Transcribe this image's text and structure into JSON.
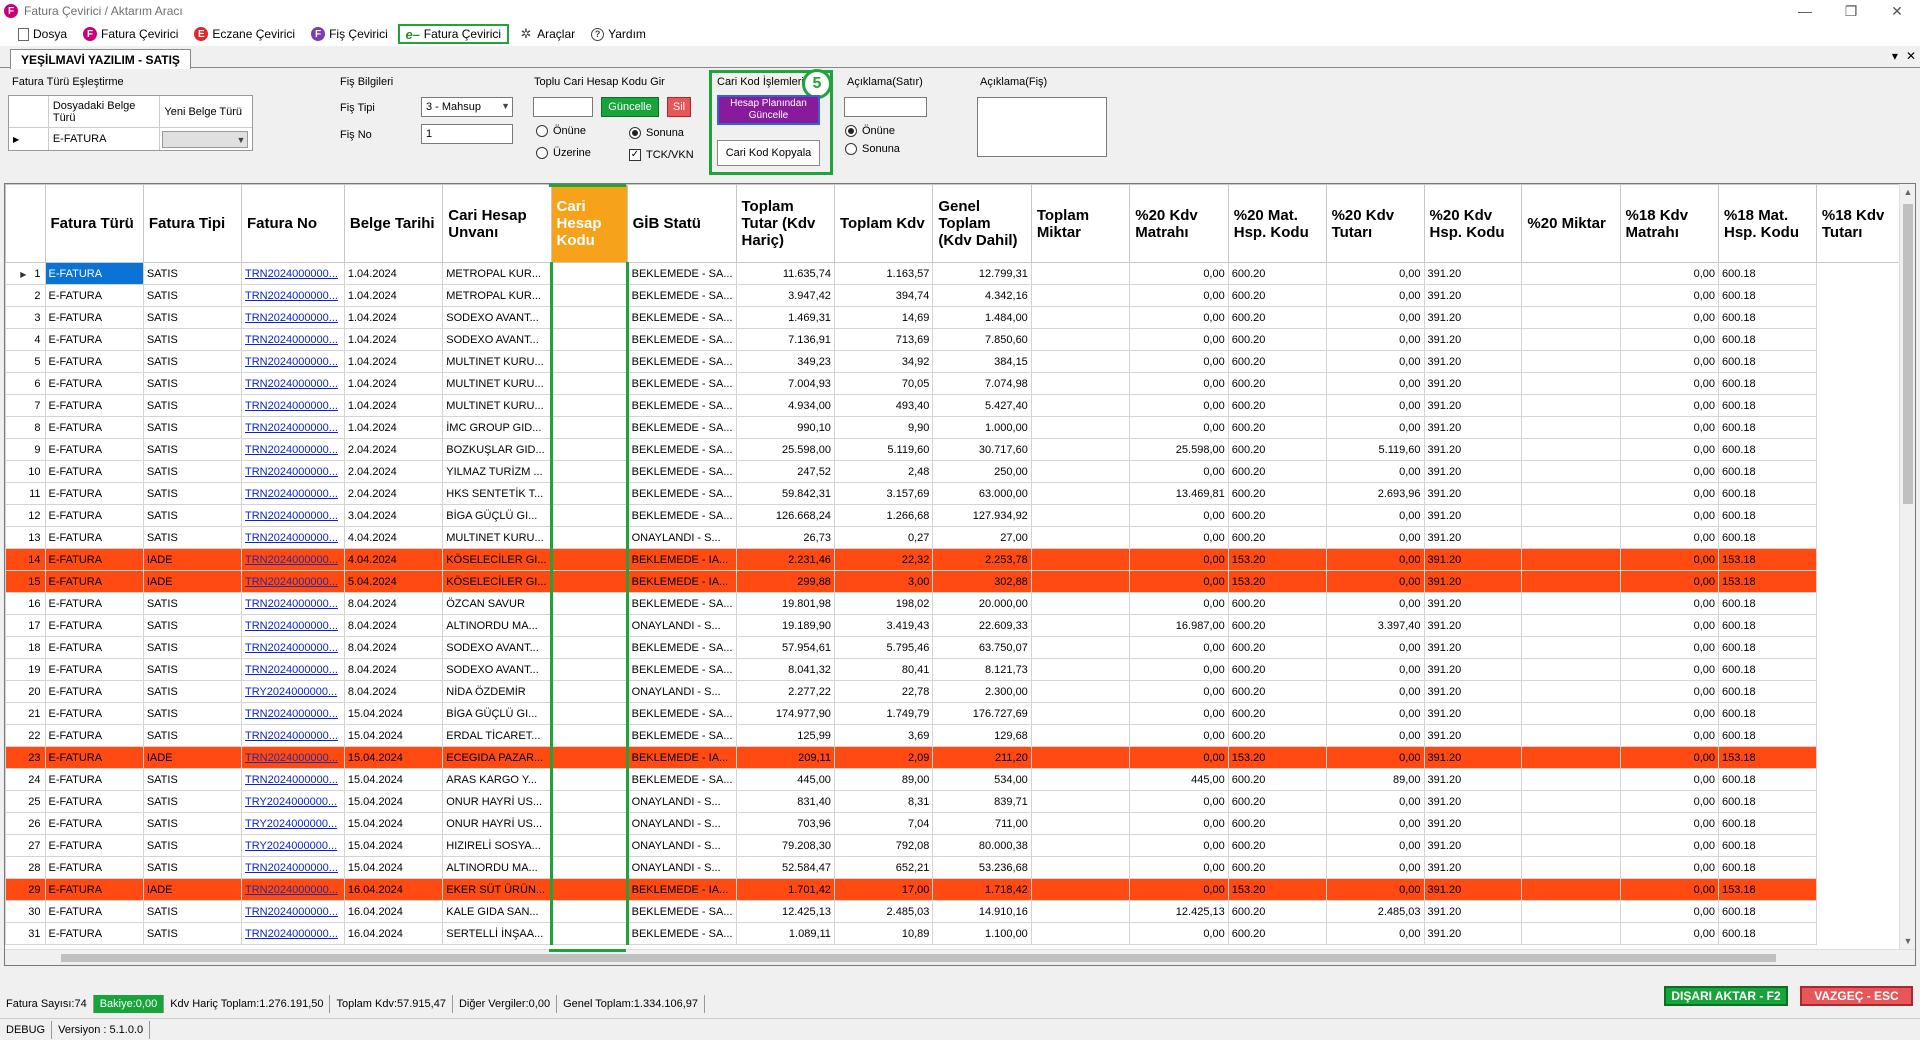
{
  "window": {
    "title": "Fatura Çevirici / Aktarım Aracı",
    "controls": [
      "—",
      "❐",
      "✕"
    ]
  },
  "menu": [
    {
      "label": "Dosya",
      "icon": "document-icon"
    },
    {
      "label": "Fatura Çevirici",
      "icon": "fatura-logo-icon"
    },
    {
      "label": "Eczane Çevirici",
      "icon": "eczane-logo-icon"
    },
    {
      "label": "Fiş Çevirici",
      "icon": "fis-logo-icon"
    },
    {
      "label": "Fatura Çevirici",
      "icon": "efatura-icon",
      "active": true
    },
    {
      "label": "Araçlar",
      "icon": "tools-icon"
    },
    {
      "label": "Yardım",
      "icon": "help-icon"
    }
  ],
  "tab": {
    "label": "YEŞİLMAVİ YAZILIM - SATIŞ"
  },
  "fatura_turu": {
    "title": "Fatura Türü Eşleştirme",
    "col1": "Dosyadaki Belge Türü",
    "col2": "Yeni Belge Türü",
    "row_value": "E-FATURA",
    "row_new": ""
  },
  "fis_bilgileri": {
    "title": "Fiş Bilgileri",
    "tip_label": "Fiş Tipi",
    "tip_value": "3 - Mahsup",
    "no_label": "Fiş No",
    "no_value": "1"
  },
  "toplu": {
    "title": "Toplu Cari Hesap Kodu Gir",
    "input_value": "",
    "update_label": "Güncelle",
    "delete_label": "Sil",
    "radio_onune": "Önüne",
    "radio_sonuna": "Sonuna",
    "radio_uzerine": "Üzerine",
    "chk_tck": "TCK/VKN"
  },
  "cari_kod": {
    "title": "Cari Kod İşlemleri",
    "badge": "5",
    "btn_hesap": "Hesap Planından Güncelle",
    "btn_kopyala": "Cari Kod Kopyala"
  },
  "aciklama_satir": {
    "title": "Açıklama(Satır)",
    "value": "",
    "radio_onune": "Önüne",
    "radio_sonuna": "Sonuna"
  },
  "aciklama_fis": {
    "title": "Açıklama(Fiş)",
    "value": ""
  },
  "grid": {
    "columns": [
      "Fatura Türü",
      "Fatura Tipi",
      "Fatura No",
      "Belge Tarihi",
      "Cari Hesap Unvanı",
      "Cari Hesap Kodu",
      "GİB Statü",
      "Toplam Tutar (Kdv Hariç)",
      "Toplam Kdv",
      "Genel Toplam (Kdv Dahil)",
      "Toplam Miktar",
      "%20 Kdv Matrahı",
      "%20 Mat. Hsp. Kodu",
      "%20 Kdv Tutarı",
      "%20 Kdv Hsp. Kodu",
      "%20 Miktar",
      "%18 Kdv Matrahı",
      "%18 Mat. Hsp. Kodu",
      "%18 Kdv Tutarı"
    ],
    "rows": [
      [
        "1",
        "E-FATURA",
        "SATIS",
        "TRN2024000000...",
        "1.04.2024",
        "METROPAL KUR...",
        "",
        "BEKLEMEDE - SA...",
        "11.635,74",
        "1.163,57",
        "12.799,31",
        "",
        "0,00",
        "600.20",
        "0,00",
        "391.20",
        "",
        "0,00",
        "600.18"
      ],
      [
        "2",
        "E-FATURA",
        "SATIS",
        "TRN2024000000...",
        "1.04.2024",
        "METROPAL KUR...",
        "",
        "BEKLEMEDE - SA...",
        "3.947,42",
        "394,74",
        "4.342,16",
        "",
        "0,00",
        "600.20",
        "0,00",
        "391.20",
        "",
        "0,00",
        "600.18"
      ],
      [
        "3",
        "E-FATURA",
        "SATIS",
        "TRN2024000000...",
        "1.04.2024",
        "SODEXO AVANT...",
        "",
        "BEKLEMEDE - SA...",
        "1.469,31",
        "14,69",
        "1.484,00",
        "",
        "0,00",
        "600.20",
        "0,00",
        "391.20",
        "",
        "0,00",
        "600.18"
      ],
      [
        "4",
        "E-FATURA",
        "SATIS",
        "TRN2024000000...",
        "1.04.2024",
        "SODEXO AVANT...",
        "",
        "BEKLEMEDE - SA...",
        "7.136,91",
        "713,69",
        "7.850,60",
        "",
        "0,00",
        "600.20",
        "0,00",
        "391.20",
        "",
        "0,00",
        "600.18"
      ],
      [
        "5",
        "E-FATURA",
        "SATIS",
        "TRN2024000000...",
        "1.04.2024",
        "MULTINET KURU...",
        "",
        "BEKLEMEDE - SA...",
        "349,23",
        "34,92",
        "384,15",
        "",
        "0,00",
        "600.20",
        "0,00",
        "391.20",
        "",
        "0,00",
        "600.18"
      ],
      [
        "6",
        "E-FATURA",
        "SATIS",
        "TRN2024000000...",
        "1.04.2024",
        "MULTINET KURU...",
        "",
        "BEKLEMEDE - SA...",
        "7.004,93",
        "70,05",
        "7.074,98",
        "",
        "0,00",
        "600.20",
        "0,00",
        "391.20",
        "",
        "0,00",
        "600.18"
      ],
      [
        "7",
        "E-FATURA",
        "SATIS",
        "TRN2024000000...",
        "1.04.2024",
        "MULTINET KURU...",
        "",
        "BEKLEMEDE - SA...",
        "4.934,00",
        "493,40",
        "5.427,40",
        "",
        "0,00",
        "600.20",
        "0,00",
        "391.20",
        "",
        "0,00",
        "600.18"
      ],
      [
        "8",
        "E-FATURA",
        "SATIS",
        "TRN2024000000...",
        "1.04.2024",
        "İMC GROUP GID...",
        "",
        "BEKLEMEDE - SA...",
        "990,10",
        "9,90",
        "1.000,00",
        "",
        "0,00",
        "600.20",
        "0,00",
        "391.20",
        "",
        "0,00",
        "600.18"
      ],
      [
        "9",
        "E-FATURA",
        "SATIS",
        "TRN2024000000...",
        "2.04.2024",
        "BOZKUŞLAR GID...",
        "",
        "BEKLEMEDE - SA...",
        "25.598,00",
        "5.119,60",
        "30.717,60",
        "",
        "25.598,00",
        "600.20",
        "5.119,60",
        "391.20",
        "",
        "0,00",
        "600.18"
      ],
      [
        "10",
        "E-FATURA",
        "SATIS",
        "TRN2024000000...",
        "2.04.2024",
        "YILMAZ TURİZM ...",
        "",
        "BEKLEMEDE - SA...",
        "247,52",
        "2,48",
        "250,00",
        "",
        "0,00",
        "600.20",
        "0,00",
        "391.20",
        "",
        "0,00",
        "600.18"
      ],
      [
        "11",
        "E-FATURA",
        "SATIS",
        "TRN2024000000...",
        "2.04.2024",
        "HKS SENTETİK T...",
        "",
        "BEKLEMEDE - SA...",
        "59.842,31",
        "3.157,69",
        "63.000,00",
        "",
        "13.469,81",
        "600.20",
        "2.693,96",
        "391.20",
        "",
        "0,00",
        "600.18"
      ],
      [
        "12",
        "E-FATURA",
        "SATIS",
        "TRN2024000000...",
        "3.04.2024",
        "BİGA GÜÇLÜ GI...",
        "",
        "BEKLEMEDE - SA...",
        "126.668,24",
        "1.266,68",
        "127.934,92",
        "",
        "0,00",
        "600.20",
        "0,00",
        "391.20",
        "",
        "0,00",
        "600.18"
      ],
      [
        "13",
        "E-FATURA",
        "SATIS",
        "TRN2024000000...",
        "4.04.2024",
        "MULTINET KURU...",
        "",
        "ONAYLANDI - S...",
        "26,73",
        "0,27",
        "27,00",
        "",
        "0,00",
        "600.20",
        "0,00",
        "391.20",
        "",
        "0,00",
        "600.18"
      ],
      [
        "14",
        "E-FATURA",
        "IADE",
        "TRN2024000000...",
        "4.04.2024",
        "KÖSELECİLER GI...",
        "",
        "BEKLEMEDE - IA...",
        "2.231,46",
        "22,32",
        "2.253,78",
        "",
        "0,00",
        "153.20",
        "0,00",
        "391.20",
        "",
        "0,00",
        "153.18"
      ],
      [
        "15",
        "E-FATURA",
        "IADE",
        "TRN2024000000...",
        "5.04.2024",
        "KÖSELECİLER GI...",
        "",
        "BEKLEMEDE - IA...",
        "299,88",
        "3,00",
        "302,88",
        "",
        "0,00",
        "153.20",
        "0,00",
        "391.20",
        "",
        "0,00",
        "153.18"
      ],
      [
        "16",
        "E-FATURA",
        "SATIS",
        "TRN2024000000...",
        "8.04.2024",
        "ÖZCAN SAVUR",
        "",
        "BEKLEMEDE - SA...",
        "19.801,98",
        "198,02",
        "20.000,00",
        "",
        "0,00",
        "600.20",
        "0,00",
        "391.20",
        "",
        "0,00",
        "600.18"
      ],
      [
        "17",
        "E-FATURA",
        "SATIS",
        "TRN2024000000...",
        "8.04.2024",
        "ALTINORDU MA...",
        "",
        "ONAYLANDI - S...",
        "19.189,90",
        "3.419,43",
        "22.609,33",
        "",
        "16.987,00",
        "600.20",
        "3.397,40",
        "391.20",
        "",
        "0,00",
        "600.18"
      ],
      [
        "18",
        "E-FATURA",
        "SATIS",
        "TRN2024000000...",
        "8.04.2024",
        "SODEXO AVANT...",
        "",
        "BEKLEMEDE - SA...",
        "57.954,61",
        "5.795,46",
        "63.750,07",
        "",
        "0,00",
        "600.20",
        "0,00",
        "391.20",
        "",
        "0,00",
        "600.18"
      ],
      [
        "19",
        "E-FATURA",
        "SATIS",
        "TRN2024000000...",
        "8.04.2024",
        "SODEXO AVANT...",
        "",
        "BEKLEMEDE - SA...",
        "8.041,32",
        "80,41",
        "8.121,73",
        "",
        "0,00",
        "600.20",
        "0,00",
        "391.20",
        "",
        "0,00",
        "600.18"
      ],
      [
        "20",
        "E-FATURA",
        "SATIS",
        "TRY2024000000...",
        "8.04.2024",
        "NİDA ÖZDEMİR",
        "",
        "ONAYLANDI - S...",
        "2.277,22",
        "22,78",
        "2.300,00",
        "",
        "0,00",
        "600.20",
        "0,00",
        "391.20",
        "",
        "0,00",
        "600.18"
      ],
      [
        "21",
        "E-FATURA",
        "SATIS",
        "TRN2024000000...",
        "15.04.2024",
        "BİGA GÜÇLÜ GI...",
        "",
        "BEKLEMEDE - SA...",
        "174.977,90",
        "1.749,79",
        "176.727,69",
        "",
        "0,00",
        "600.20",
        "0,00",
        "391.20",
        "",
        "0,00",
        "600.18"
      ],
      [
        "22",
        "E-FATURA",
        "SATIS",
        "TRN2024000000...",
        "15.04.2024",
        "ERDAL TİCARET...",
        "",
        "BEKLEMEDE - SA...",
        "125,99",
        "3,69",
        "129,68",
        "",
        "0,00",
        "600.20",
        "0,00",
        "391.20",
        "",
        "0,00",
        "600.18"
      ],
      [
        "23",
        "E-FATURA",
        "IADE",
        "TRN2024000000...",
        "15.04.2024",
        "ECEGIDA PAZAR...",
        "",
        "BEKLEMEDE - IA...",
        "209,11",
        "2,09",
        "211,20",
        "",
        "0,00",
        "153.20",
        "0,00",
        "391.20",
        "",
        "0,00",
        "153.18"
      ],
      [
        "24",
        "E-FATURA",
        "SATIS",
        "TRN2024000000...",
        "15.04.2024",
        "ARAS KARGO Y...",
        "",
        "BEKLEMEDE - SA...",
        "445,00",
        "89,00",
        "534,00",
        "",
        "445,00",
        "600.20",
        "89,00",
        "391.20",
        "",
        "0,00",
        "600.18"
      ],
      [
        "25",
        "E-FATURA",
        "SATIS",
        "TRY2024000000...",
        "15.04.2024",
        "ONUR HAYRİ US...",
        "",
        "ONAYLANDI - S...",
        "831,40",
        "8,31",
        "839,71",
        "",
        "0,00",
        "600.20",
        "0,00",
        "391.20",
        "",
        "0,00",
        "600.18"
      ],
      [
        "26",
        "E-FATURA",
        "SATIS",
        "TRY2024000000...",
        "15.04.2024",
        "ONUR HAYRİ US...",
        "",
        "ONAYLANDI - S...",
        "703,96",
        "7,04",
        "711,00",
        "",
        "0,00",
        "600.20",
        "0,00",
        "391.20",
        "",
        "0,00",
        "600.18"
      ],
      [
        "27",
        "E-FATURA",
        "SATIS",
        "TRY2024000000...",
        "15.04.2024",
        "HIZIRELİ SOSYA...",
        "",
        "ONAYLANDI - S...",
        "79.208,30",
        "792,08",
        "80.000,38",
        "",
        "0,00",
        "600.20",
        "0,00",
        "391.20",
        "",
        "0,00",
        "600.18"
      ],
      [
        "28",
        "E-FATURA",
        "SATIS",
        "TRN2024000000...",
        "15.04.2024",
        "ALTINORDU MA...",
        "",
        "ONAYLANDI - S...",
        "52.584,47",
        "652,21",
        "53.236,68",
        "",
        "0,00",
        "600.20",
        "0,00",
        "391.20",
        "",
        "0,00",
        "600.18"
      ],
      [
        "29",
        "E-FATURA",
        "IADE",
        "TRN2024000000...",
        "16.04.2024",
        "EKER SÜT ÜRÜN...",
        "",
        "BEKLEMEDE - IA...",
        "1.701,42",
        "17,00",
        "1.718,42",
        "",
        "0,00",
        "153.20",
        "0,00",
        "391.20",
        "",
        "0,00",
        "153.18"
      ],
      [
        "30",
        "E-FATURA",
        "SATIS",
        "TRN2024000000...",
        "16.04.2024",
        "KALE GIDA SAN...",
        "",
        "BEKLEMEDE - SA...",
        "12.425,13",
        "2.485,03",
        "14.910,16",
        "",
        "12.425,13",
        "600.20",
        "2.485,03",
        "391.20",
        "",
        "0,00",
        "600.18"
      ],
      [
        "31",
        "E-FATURA",
        "SATIS",
        "TRN2024000000...",
        "16.04.2024",
        "SERTELLİ İNŞAA...",
        "",
        "BEKLEMEDE - SA...",
        "1.089,11",
        "10,89",
        "1.100,00",
        "",
        "0,00",
        "600.20",
        "0,00",
        "391.20",
        "",
        "0,00",
        "600.18"
      ]
    ]
  },
  "status": {
    "fatura_sayisi": "Fatura Sayısı:74",
    "bakiye": "Bakiye:0,00",
    "kdv_haric": "Kdv Hariç Toplam:1.276.191,50",
    "toplam_kdv": "Toplam Kdv:57.915,47",
    "diger": "Diğer Vergiler:0,00",
    "genel": "Genel Toplam:1.334.106,97",
    "export_label": "DIŞARI AKTAR - F2",
    "cancel_label": "VAZGEÇ - ESC",
    "debug": "DEBUG",
    "version": "Versiyon : 5.1.0.0"
  },
  "colors": {
    "accent_green": "#1fa33a",
    "iade_row": "#ff4a12",
    "header_highlight": "#f7a21b",
    "purple_button": "#8a1a9c"
  }
}
